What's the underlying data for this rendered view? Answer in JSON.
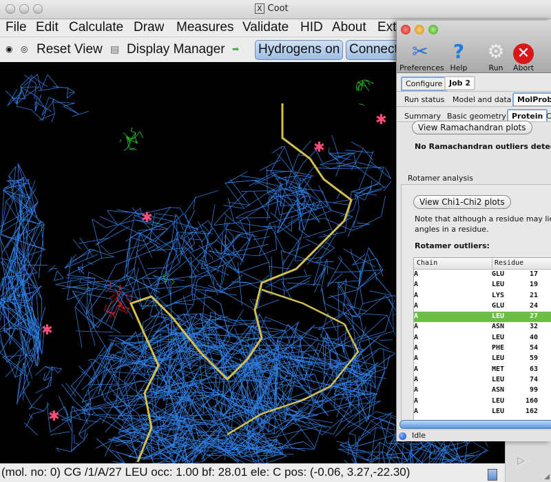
{
  "coot": {
    "title": "Coot",
    "title_icon": "X",
    "menu": [
      "File",
      "Edit",
      "Calculate",
      "Draw",
      "Measures",
      "Validate",
      "HID",
      "About",
      "Ext"
    ],
    "toolbar": {
      "reset_view": "Reset View",
      "display_manager": "Display Manager",
      "hydrogens": "Hydrogens on",
      "connect": "Connect"
    },
    "status": "(mol. no: 0)  CG /1/A/27 LEU occ:  1.00 bf: 28.01 ele:  C pos: (-0.06, 3.27,-22.30)"
  },
  "ccp4": {
    "tools": [
      "Preferences",
      "Help",
      "Run",
      "Abort"
    ],
    "tabs": [
      "Configure",
      "Job 2"
    ],
    "subtabs": [
      "Run status",
      "Model and data",
      "MolProbity"
    ],
    "subsubtabs": [
      "Summary",
      "Basic geometry",
      "Protein",
      "Cl"
    ],
    "rama_button": "View Ramachandran plots",
    "rama_text": "No Ramachandran outliers detected",
    "rotamer_section": "Rotamer analysis",
    "chi_button": "View Chi1-Chi2 plots",
    "note": "Note that although a residue may lie",
    "note2": "angles in a residue.",
    "outliers_label": "Rotamer outliers:",
    "columns": [
      "Chain",
      "Residue"
    ],
    "rows": [
      [
        "A",
        "GLU",
        "17"
      ],
      [
        "A",
        "LEU",
        "19"
      ],
      [
        "A",
        "LYS",
        "21"
      ],
      [
        "A",
        "GLU",
        "24"
      ],
      [
        "A",
        "LEU",
        "27"
      ],
      [
        "A",
        "ASN",
        "32"
      ],
      [
        "A",
        "LEU",
        "40"
      ],
      [
        "A",
        "PHE",
        "54"
      ],
      [
        "A",
        "LEU",
        "59"
      ],
      [
        "A",
        "MET",
        "63"
      ],
      [
        "A",
        "LEU",
        "74"
      ],
      [
        "A",
        "ASN",
        "99"
      ],
      [
        "A",
        "LEU",
        "160"
      ],
      [
        "A",
        "LEU",
        "162"
      ]
    ],
    "selected_row": 4,
    "status": "Idle"
  },
  "colors": {
    "mesh": "#2f7de0",
    "backbone": "#d4c050",
    "diff_pos": "#22cc22",
    "diff_neg": "#ee2020",
    "selection": "#6cbf45"
  }
}
